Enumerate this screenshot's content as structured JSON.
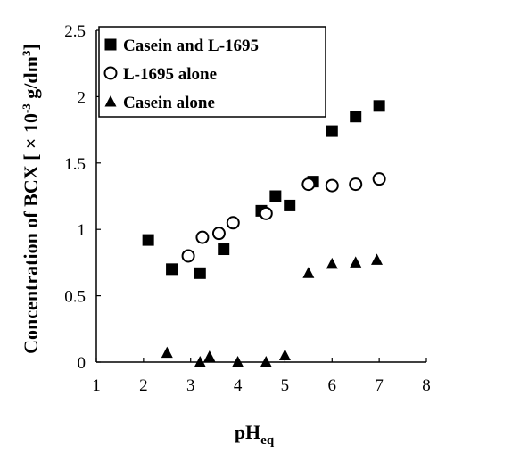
{
  "chart_data": {
    "type": "scatter",
    "xlim": [
      1,
      8
    ],
    "ylim": [
      0,
      2.5
    ],
    "x_ticks": [
      "1",
      "2",
      "3",
      "4",
      "5",
      "6",
      "7",
      "8"
    ],
    "y_ticks": [
      "0",
      "0.5",
      "1",
      "1.5",
      "2",
      "2.5"
    ],
    "xlabel": {
      "main": "pH",
      "sub": "eq"
    },
    "ylabel": {
      "main": "Concentration of BCX [ × 10",
      "sup1": "-3",
      "mid": " g/dm",
      "sup2": "3",
      "end": "]"
    },
    "grid": false,
    "legend_position": "top-left",
    "series": [
      {
        "name": "Casein and L-1695",
        "marker": "filled-square",
        "color": "#000000",
        "points": [
          [
            2.1,
            0.92
          ],
          [
            2.6,
            0.7
          ],
          [
            3.2,
            0.67
          ],
          [
            3.7,
            0.85
          ],
          [
            4.5,
            1.14
          ],
          [
            4.8,
            1.25
          ],
          [
            5.1,
            1.18
          ],
          [
            5.6,
            1.36
          ],
          [
            6.0,
            1.74
          ],
          [
            6.5,
            1.85
          ],
          [
            7.0,
            1.93
          ]
        ]
      },
      {
        "name": "L-1695 alone",
        "marker": "open-circle",
        "color": "#000000",
        "points": [
          [
            2.95,
            0.8
          ],
          [
            3.25,
            0.94
          ],
          [
            3.6,
            0.97
          ],
          [
            3.9,
            1.05
          ],
          [
            4.6,
            1.12
          ],
          [
            5.5,
            1.34
          ],
          [
            6.0,
            1.33
          ],
          [
            6.5,
            1.34
          ],
          [
            7.0,
            1.38
          ]
        ]
      },
      {
        "name": "Casein alone",
        "marker": "filled-triangle",
        "color": "#000000",
        "points": [
          [
            2.5,
            0.07
          ],
          [
            3.2,
            0.0
          ],
          [
            3.4,
            0.04
          ],
          [
            4.0,
            0.0
          ],
          [
            4.6,
            0.0
          ],
          [
            5.0,
            0.05
          ],
          [
            5.5,
            0.67
          ],
          [
            6.0,
            0.74
          ],
          [
            6.5,
            0.75
          ],
          [
            6.95,
            0.77
          ]
        ]
      }
    ]
  }
}
